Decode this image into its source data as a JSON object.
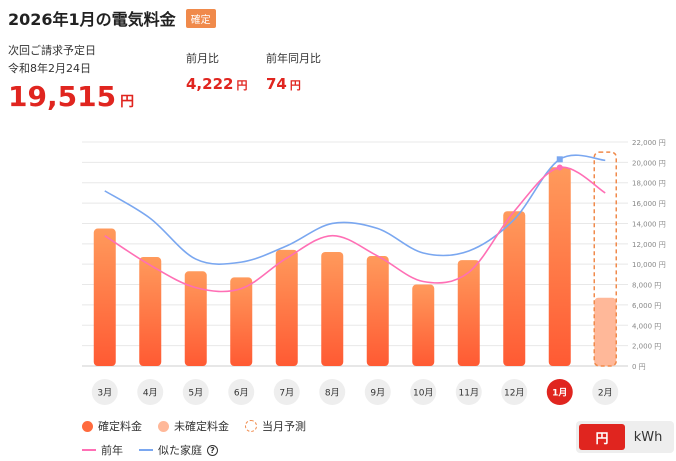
{
  "header": {
    "title": "2026年1月の電気料金",
    "status_badge": "確定"
  },
  "billing": {
    "due_label": "次回ご請求予定日",
    "due_date": "令和8年2月24日",
    "amount": "19,515",
    "currency": "円"
  },
  "comparisons": [
    {
      "label": "前月比",
      "value": "4,222",
      "unit": "円"
    },
    {
      "label": "前年同月比",
      "value": "74",
      "unit": "円"
    }
  ],
  "legend": {
    "confirmed": "確定料金",
    "unconfirmed": "未確定料金",
    "forecast": "当月予測",
    "prev_year": "前年",
    "similar_home": "似た家庭"
  },
  "unit_toggle": {
    "yen": "円",
    "kwh": "kWh",
    "selected": "円"
  },
  "colors": {
    "accent": "#e0251f",
    "bar_confirmed": "#ff6a3d",
    "bar_unconfirmed": "#ffb899",
    "prev_year_line": "#ff6fb5",
    "similar_line": "#7aa7f0",
    "forecast_outline": "#f08a4b"
  },
  "chart_data": {
    "type": "bar",
    "categories": [
      "3月",
      "4月",
      "5月",
      "6月",
      "7月",
      "8月",
      "9月",
      "10月",
      "11月",
      "12月",
      "1月",
      "2月"
    ],
    "selected_category": "1月",
    "y_unit": "円",
    "ylim": [
      0,
      22000
    ],
    "y_ticks": [
      0,
      2000,
      4000,
      6000,
      8000,
      10000,
      12000,
      14000,
      16000,
      18000,
      20000,
      22000
    ],
    "y_tick_labels": [
      "0 円",
      "2,000 円",
      "4,000 円",
      "6,000 円",
      "8,000 円",
      "10,000 円",
      "12,000 円",
      "14,000 円",
      "16,000 円",
      "18,000 円",
      "20,000 円",
      "22,000 円"
    ],
    "grid": true,
    "series": [
      {
        "name": "確定料金",
        "kind": "bar",
        "values": [
          13500,
          10700,
          9300,
          8700,
          11400,
          11200,
          10800,
          8000,
          10400,
          15200,
          19515,
          null
        ]
      },
      {
        "name": "未確定料金",
        "kind": "bar",
        "values": [
          null,
          null,
          null,
          null,
          null,
          null,
          null,
          null,
          null,
          null,
          null,
          6700
        ]
      },
      {
        "name": "当月予測",
        "kind": "bar-outline",
        "values": [
          null,
          null,
          null,
          null,
          null,
          null,
          null,
          null,
          null,
          null,
          null,
          21000
        ]
      },
      {
        "name": "前年",
        "kind": "line",
        "values": [
          12800,
          9900,
          7700,
          7600,
          10600,
          12800,
          10800,
          8300,
          9200,
          15200,
          19500,
          17000
        ]
      },
      {
        "name": "似た家庭",
        "kind": "line",
        "values": [
          17200,
          14500,
          10500,
          10200,
          11800,
          14000,
          13500,
          11100,
          11300,
          14400,
          20300,
          20200
        ]
      }
    ]
  }
}
